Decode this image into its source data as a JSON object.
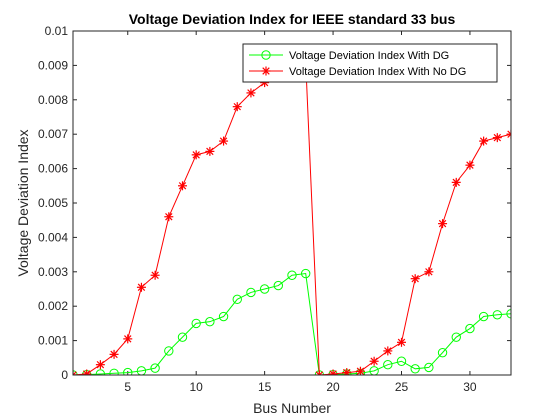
{
  "chart_data": {
    "type": "line",
    "title": "Voltage Deviation Index for IEEE standard 33 bus",
    "xlabel": "Bus Number",
    "ylabel": "Voltage Deviation Index",
    "xlim": [
      1,
      33
    ],
    "ylim": [
      0,
      0.01
    ],
    "xticks": [
      5,
      10,
      15,
      20,
      25,
      30
    ],
    "yticks": [
      0,
      0.001,
      0.002,
      0.003,
      0.004,
      0.005,
      0.006,
      0.007,
      0.008,
      0.009,
      0.01
    ],
    "ytick_labels": [
      "0",
      "0.001",
      "0.002",
      "0.003",
      "0.004",
      "0.005",
      "0.006",
      "0.007",
      "0.008",
      "0.009",
      "0.01"
    ],
    "grid": false,
    "legend_position": "top-right",
    "x": [
      1,
      2,
      3,
      4,
      5,
      6,
      7,
      8,
      9,
      10,
      11,
      12,
      13,
      14,
      15,
      16,
      17,
      18,
      19,
      20,
      21,
      22,
      23,
      24,
      25,
      26,
      27,
      28,
      29,
      30,
      31,
      32,
      33
    ],
    "series": [
      {
        "name": "Voltage Deviation Index With DG",
        "color": "#00ff00",
        "marker": "circle",
        "values": [
          0,
          1e-05,
          3e-05,
          5e-05,
          7e-05,
          0.00012,
          0.0002,
          0.0007,
          0.0011,
          0.0015,
          0.00155,
          0.0017,
          0.0022,
          0.0024,
          0.0025,
          0.0026,
          0.0029,
          0.00295,
          0,
          1e-05,
          3e-05,
          5e-05,
          0.00012,
          0.0003,
          0.0004,
          0.00018,
          0.00022,
          0.00065,
          0.0011,
          0.00135,
          0.0017,
          0.00175,
          0.00178
        ]
      },
      {
        "name": "Voltage Deviation Index With No DG",
        "color": "#ff0000",
        "marker": "asterisk",
        "values": [
          0,
          3e-05,
          0.0003,
          0.0006,
          0.00105,
          0.00255,
          0.0029,
          0.0046,
          0.0055,
          0.0064,
          0.0065,
          0.0068,
          0.0078,
          0.0082,
          0.0085,
          0.0087,
          0.009,
          0.0091,
          0,
          3e-05,
          7e-05,
          0.00011,
          0.0004,
          0.0007,
          0.00095,
          0.0028,
          0.003,
          0.0044,
          0.0056,
          0.0061,
          0.0068,
          0.0069,
          0.007
        ]
      }
    ]
  }
}
